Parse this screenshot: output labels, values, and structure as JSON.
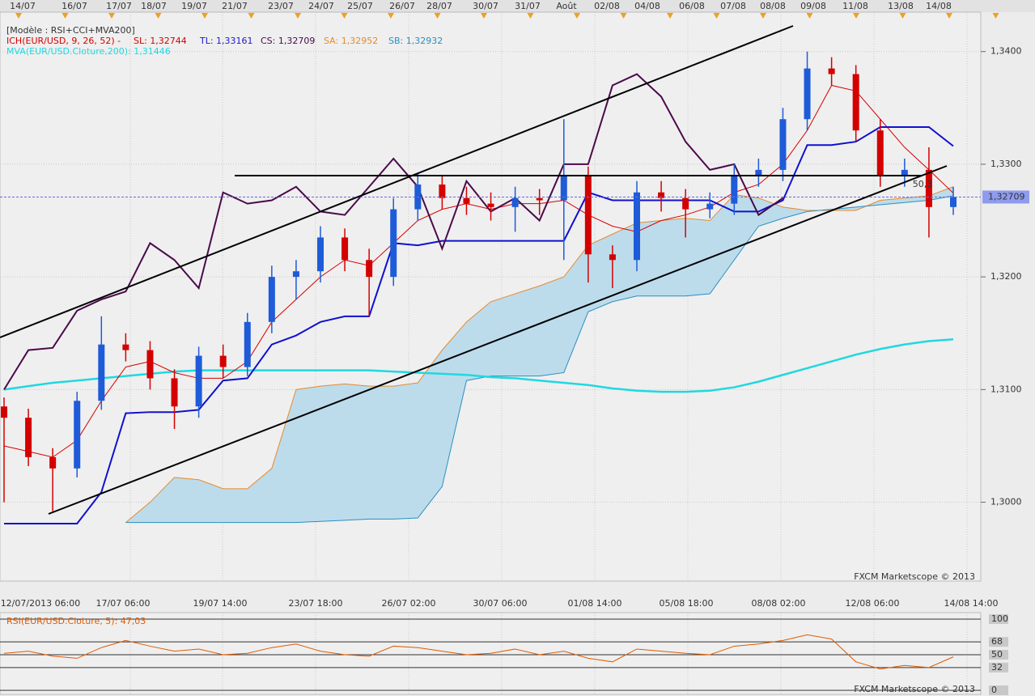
{
  "chart_data": [
    {
      "type": "candlestick",
      "header": "[Modèle : RSI+CCI+MVA200]",
      "legend": [
        {
          "label": "ICH(EUR/USD, 9, 26, 52) -",
          "color": "#d40000"
        },
        {
          "label": "SL: 1,32744",
          "color": "#d40000"
        },
        {
          "label": "TL: 1,33161",
          "color": "#1a1acc"
        },
        {
          "label": "CS: 1,32709",
          "color": "#4a0a4a"
        },
        {
          "label": "SA: 1,32952",
          "color": "#e88a2a"
        },
        {
          "label": "SB: 1,32932",
          "color": "#2a8fc0"
        },
        {
          "label": "MVA(EUR/USD.Cloture,200): 1,31446",
          "color": "#20d8e0"
        }
      ],
      "top_dates": [
        "14/07",
        "16/07",
        "17/07",
        "18/07",
        "19/07",
        "21/07",
        "23/07",
        "24/07",
        "25/07",
        "26/07",
        "28/07",
        "30/07",
        "31/07",
        "Août",
        "02/08",
        "04/08",
        "06/08",
        "07/08",
        "08/08",
        "09/08",
        "11/08",
        "13/08",
        "14/08"
      ],
      "xtick_labels": [
        "12/07/2013 06:00",
        "17/07 06:00",
        "19/07 14:00",
        "23/07 18:00",
        "26/07 02:00",
        "30/07 06:00",
        "01/08 14:00",
        "05/08 18:00",
        "08/08 02:00",
        "12/08 06:00",
        "14/08 14:00"
      ],
      "open": [
        1.3085,
        1.3075,
        1.304,
        1.303,
        1.309,
        1.314,
        1.3135,
        1.311,
        1.3085,
        1.313,
        1.312,
        1.316,
        1.32,
        1.3205,
        1.3235,
        1.3215,
        1.32,
        1.326,
        1.3282,
        1.327,
        1.3265,
        1.3262,
        1.327,
        1.3268,
        1.329,
        1.322,
        1.3215,
        1.3275,
        1.327,
        1.326,
        1.3265,
        1.329,
        1.3295,
        1.334,
        1.3385,
        1.338,
        1.333,
        1.329,
        1.3295,
        1.3262
      ],
      "high": [
        1.3093,
        1.3083,
        1.3048,
        1.3098,
        1.3165,
        1.315,
        1.3143,
        1.3118,
        1.3138,
        1.314,
        1.3168,
        1.321,
        1.3215,
        1.3245,
        1.3243,
        1.3225,
        1.327,
        1.3292,
        1.329,
        1.328,
        1.3275,
        1.328,
        1.3278,
        1.334,
        1.3298,
        1.3228,
        1.3285,
        1.3285,
        1.3278,
        1.3275,
        1.33,
        1.3305,
        1.335,
        1.34,
        1.3395,
        1.3388,
        1.334,
        1.3305,
        1.3315,
        1.328
      ],
      "low": [
        1.3,
        1.3032,
        1.2992,
        1.3022,
        1.3082,
        1.3125,
        1.31,
        1.3065,
        1.3075,
        1.311,
        1.3112,
        1.315,
        1.318,
        1.3195,
        1.3205,
        1.3165,
        1.3192,
        1.325,
        1.326,
        1.3255,
        1.325,
        1.324,
        1.3255,
        1.3215,
        1.3195,
        1.319,
        1.3205,
        1.3258,
        1.3235,
        1.3252,
        1.3255,
        1.328,
        1.3285,
        1.333,
        1.337,
        1.332,
        1.328,
        1.328,
        1.3235,
        1.3255
      ],
      "close": [
        1.3075,
        1.304,
        1.303,
        1.309,
        1.314,
        1.3135,
        1.311,
        1.3085,
        1.313,
        1.312,
        1.316,
        1.32,
        1.3205,
        1.3235,
        1.3215,
        1.32,
        1.326,
        1.3282,
        1.327,
        1.3265,
        1.3262,
        1.327,
        1.3268,
        1.329,
        1.322,
        1.3215,
        1.3275,
        1.327,
        1.326,
        1.3265,
        1.329,
        1.3295,
        1.334,
        1.3385,
        1.338,
        1.333,
        1.329,
        1.3295,
        1.3262,
        1.3271
      ],
      "up_color": "#1e5bd8",
      "down_color": "#d40000",
      "cloud": {
        "span_a": {
          "color": "#e88a2a",
          "values": [
            null,
            null,
            null,
            null,
            null,
            1.2982,
            1.3,
            1.3022,
            1.302,
            1.3012,
            1.3012,
            1.303,
            1.31,
            1.3103,
            1.3105,
            1.3103,
            1.3103,
            1.3106,
            1.3135,
            1.316,
            1.3178,
            1.3185,
            1.3192,
            1.32,
            1.3228,
            1.3238,
            1.3248,
            1.325,
            1.3252,
            1.325,
            1.3273,
            1.327,
            1.3262,
            1.3259,
            1.3259,
            1.3259,
            1.3268,
            1.327,
            1.3272,
            1.328
          ]
        },
        "span_b": {
          "color": "#2a8fc0",
          "values": [
            null,
            null,
            null,
            null,
            null,
            1.2982,
            1.2982,
            1.2982,
            1.2982,
            1.2982,
            1.2982,
            1.2982,
            1.2982,
            1.2983,
            1.2984,
            1.2985,
            1.2985,
            1.2986,
            1.3014,
            1.3108,
            1.3112,
            1.3112,
            1.3112,
            1.3115,
            1.3169,
            1.3178,
            1.3183,
            1.3183,
            1.3183,
            1.3185,
            1.3215,
            1.3245,
            1.3252,
            1.3258,
            1.326,
            1.3262,
            1.3264,
            1.3266,
            1.3268,
            1.3272
          ]
        },
        "fill": "#bcdcec"
      },
      "lines": [
        {
          "color": "#20d8e0",
          "width": 2.5,
          "values": [
            1.31,
            1.3103,
            1.3106,
            1.3108,
            1.311,
            1.3112,
            1.3114,
            1.3116,
            1.3117,
            1.3117,
            1.3117,
            1.3117,
            1.3117,
            1.3117,
            1.3117,
            1.3117,
            1.3116,
            1.3115,
            1.3114,
            1.3113,
            1.3111,
            1.311,
            1.3108,
            1.3106,
            1.3104,
            1.3101,
            1.3099,
            1.3098,
            1.3098,
            1.3099,
            1.3102,
            1.3107,
            1.3113,
            1.3119,
            1.3125,
            1.3131,
            1.3136,
            1.314,
            1.3143,
            1.31446
          ]
        },
        {
          "color": "#d40000",
          "width": 1,
          "values": [
            1.305,
            1.3045,
            1.304,
            1.3055,
            1.309,
            1.312,
            1.3125,
            1.3115,
            1.311,
            1.311,
            1.3125,
            1.316,
            1.318,
            1.32,
            1.3215,
            1.321,
            1.323,
            1.325,
            1.326,
            1.3265,
            1.326,
            1.3265,
            1.3265,
            1.3268,
            1.3255,
            1.3245,
            1.324,
            1.325,
            1.3255,
            1.3262,
            1.3275,
            1.3282,
            1.33,
            1.333,
            1.337,
            1.3365,
            1.334,
            1.3315,
            1.3295,
            1.32744
          ]
        },
        {
          "color": "#1010d0",
          "width": 2,
          "values": [
            1.2981,
            1.2981,
            1.2981,
            1.2981,
            1.3009,
            1.3079,
            1.308,
            1.308,
            1.3082,
            1.3108,
            1.311,
            1.314,
            1.3148,
            1.316,
            1.3165,
            1.3165,
            1.323,
            1.3228,
            1.3232,
            1.3232,
            1.3232,
            1.3232,
            1.3232,
            1.3232,
            1.3275,
            1.3268,
            1.3268,
            1.3268,
            1.3268,
            1.3268,
            1.3258,
            1.3258,
            1.3268,
            1.3317,
            1.3317,
            1.332,
            1.3333,
            1.3333,
            1.3333,
            1.33161
          ]
        },
        {
          "color": "#4a0a4a",
          "width": 2,
          "values": [
            1.31,
            1.3135,
            1.3137,
            1.317,
            1.318,
            1.3187,
            1.323,
            1.3215,
            1.319,
            1.3275,
            1.3265,
            1.3268,
            1.328,
            1.3258,
            1.3255,
            1.328,
            1.3305,
            1.328,
            1.3225,
            1.3285,
            1.3258,
            1.327,
            1.325,
            1.33,
            1.33,
            1.337,
            1.338,
            1.336,
            1.332,
            1.3295,
            1.33,
            1.3255,
            1.327,
            null,
            null,
            null,
            null,
            null,
            null,
            null
          ]
        }
      ],
      "price_marker": {
        "value": 1.32709,
        "label": "1,32709"
      },
      "annotation": "50,3",
      "watermark": "FXCM Marketscope © 2013",
      "ylim": [
        1.293,
        1.3435
      ],
      "yticks": [
        {
          "value": 1.34,
          "label": "1,3400"
        },
        {
          "value": 1.33,
          "label": "1,3300"
        },
        {
          "value": 1.32,
          "label": "1,3200"
        },
        {
          "value": 1.31,
          "label": "1,3100"
        },
        {
          "value": 1.3,
          "label": "1,3000"
        }
      ],
      "grid": true
    },
    {
      "type": "line",
      "title": "RSI(EUR/USD.Cloture, 5): 47,03",
      "color": "#e05a00",
      "values": [
        52,
        55,
        48,
        45,
        60,
        70,
        62,
        55,
        58,
        50,
        52,
        60,
        65,
        55,
        50,
        48,
        62,
        60,
        55,
        50,
        52,
        58,
        50,
        55,
        45,
        40,
        58,
        55,
        52,
        50,
        62,
        65,
        70,
        78,
        72,
        40,
        30,
        35,
        32,
        47.03
      ],
      "watermark": "FXCM Marketscope © 2013",
      "ylim": [
        0,
        100
      ],
      "yticks": [
        100,
        68,
        50,
        32,
        0
      ],
      "grid": true
    }
  ]
}
